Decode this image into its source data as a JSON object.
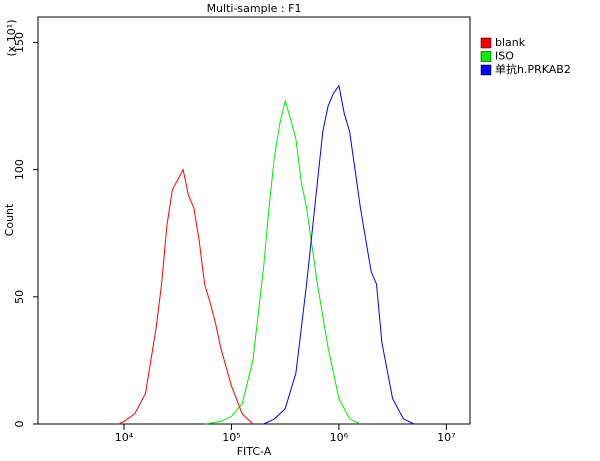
{
  "chart_data": {
    "type": "line",
    "title": "Multi-sample : F1",
    "x_label": "FITC-A",
    "y_label": "Count",
    "y_unit": "(x 10¹)",
    "x_log": true,
    "xlim": [
      1585,
      16600000
    ],
    "xticks": [
      {
        "value": 10000,
        "label": "10⁴"
      },
      {
        "value": 100000,
        "label": "10⁵"
      },
      {
        "value": 1000000,
        "label": "10⁶"
      },
      {
        "value": 10000000,
        "label": "10⁷"
      }
    ],
    "ylim": [
      0,
      160
    ],
    "yticks": [
      0,
      50,
      100,
      150
    ],
    "legend": "top-right",
    "series": [
      {
        "name": "blank",
        "color": "#ff0000",
        "x": [
          8913,
          10000,
          12589,
          15849,
          19953,
          22387,
          25119,
          28184,
          31623,
          35481,
          39811,
          44668,
          50119,
          56234,
          63096,
          70795,
          79433,
          100000,
          125893,
          158489
        ],
        "values": [
          0,
          1,
          4,
          12,
          38,
          55,
          78,
          92,
          96,
          100,
          90,
          85,
          72,
          55,
          48,
          40,
          30,
          15,
          4,
          0
        ]
      },
      {
        "name": "ISO",
        "color": "#00ee00",
        "x": [
          56234,
          79433,
          100000,
          125893,
          158489,
          199526,
          223872,
          251189,
          281838,
          316228,
          354813,
          398107,
          446684,
          501187,
          562341,
          630957,
          794328,
          1000000,
          1258925,
          1584893
        ],
        "values": [
          0,
          1,
          3,
          8,
          25,
          62,
          85,
          105,
          118,
          127,
          120,
          112,
          95,
          85,
          70,
          55,
          30,
          10,
          2,
          0
        ]
      },
      {
        "name": "单抗h.PRKAB2",
        "color": "#0000ff",
        "x": [
          199526,
          251189,
          316228,
          398107,
          501187,
          630957,
          707946,
          794328,
          891251,
          1000000,
          1122018,
          1258925,
          1412538,
          1584893,
          1995262,
          2238721,
          2511886,
          3162278,
          3981072,
          5011872
        ],
        "values": [
          0,
          2,
          6,
          20,
          55,
          95,
          115,
          125,
          130,
          133,
          122,
          115,
          100,
          85,
          60,
          55,
          32,
          10,
          2,
          0
        ]
      }
    ]
  }
}
